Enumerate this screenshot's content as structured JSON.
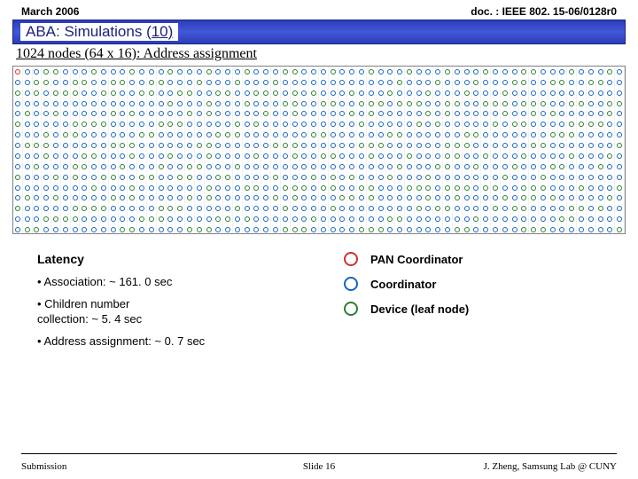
{
  "header": {
    "date": "March 2006",
    "doc": "doc. : IEEE 802. 15-06/0128r0"
  },
  "title": {
    "prefix": "ABA: Simulations ",
    "number": "(10)"
  },
  "subtitle": "1024 nodes (64 x 16): Address assignment",
  "grid": {
    "cols": 64,
    "rows": 16,
    "pan_color": "#d32f2f",
    "coord_color": "#1565c0",
    "device_color": "#2e7d32"
  },
  "latency": {
    "heading": "Latency",
    "items": [
      "• Association: ~ 161. 0 sec",
      "• Children number\n  collection: ~ 5. 4 sec",
      "• Address assignment: ~ 0. 7 sec"
    ]
  },
  "legend": [
    {
      "label": "PAN Coordinator",
      "color": "#d32f2f"
    },
    {
      "label": "Coordinator",
      "color": "#1565c0"
    },
    {
      "label": "Device (leaf node)",
      "color": "#2e7d32"
    }
  ],
  "footer": {
    "left": "Submission",
    "center": "Slide 16",
    "right": "J. Zheng, Samsung Lab @ CUNY"
  }
}
